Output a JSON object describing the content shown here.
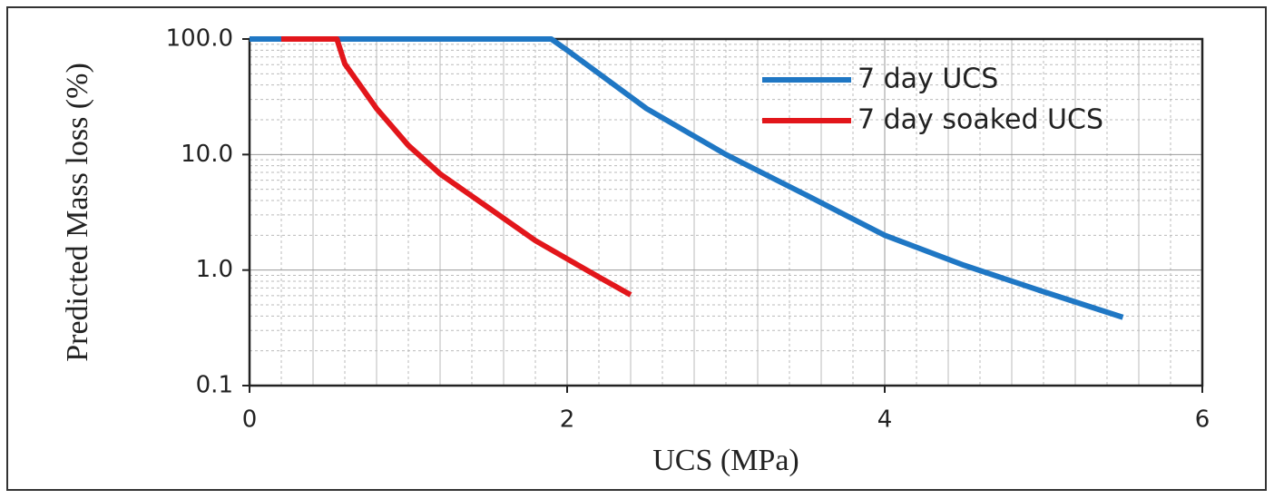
{
  "chart_data": {
    "type": "line",
    "xlabel": "UCS (MPa)",
    "ylabel": "Predicted Mass loss (%)",
    "xlim": [
      0,
      6
    ],
    "xticks": [
      0,
      2,
      4,
      6
    ],
    "ylim": [
      0.1,
      100
    ],
    "yscale": "log",
    "yticks": [
      0.1,
      {
        "value": 1,
        "label": "1.0"
      },
      {
        "value": 10,
        "label": "10.0"
      },
      {
        "value": 100,
        "label": "100.0"
      }
    ],
    "grid": true,
    "legend": "upper right",
    "series": [
      {
        "name": "7 day UCS",
        "color": "#1f77c4",
        "x": [
          0,
          1.9,
          2,
          2.5,
          3,
          3.5,
          4,
          4.5,
          5,
          5.5
        ],
        "values": [
          100,
          100,
          80,
          25,
          10,
          4.5,
          2.0,
          1.1,
          0.65,
          0.39
        ]
      },
      {
        "name": "7 day soaked UCS",
        "color": "#e2161b",
        "x": [
          0.2,
          0.55,
          0.6,
          0.8,
          1.0,
          1.2,
          1.5,
          1.8,
          2.0,
          2.2,
          2.4
        ],
        "values": [
          100,
          100,
          61,
          25,
          12,
          6.8,
          3.5,
          1.8,
          1.25,
          0.87,
          0.61
        ]
      }
    ]
  }
}
